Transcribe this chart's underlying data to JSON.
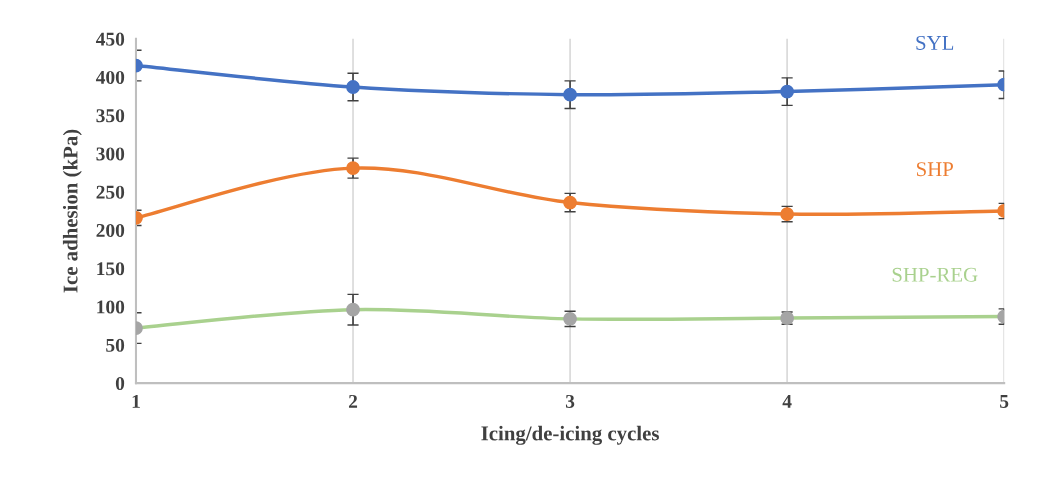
{
  "chart_data": {
    "type": "line",
    "xlabel": "Icing/de-icing cycles",
    "ylabel": "Ice adhesion (kPa)",
    "x": [
      1,
      2,
      3,
      4,
      5
    ],
    "xlim": [
      1,
      5
    ],
    "xticks": [
      1,
      2,
      3,
      4,
      5
    ],
    "ylim": [
      0,
      450
    ],
    "yticks": [
      0,
      50,
      100,
      150,
      200,
      250,
      300,
      350,
      400,
      450
    ],
    "grid": "x",
    "legend": false,
    "marker": "circle",
    "line_style": "solid",
    "series": [
      {
        "name": "SYL",
        "color": "#4472c4",
        "values": [
          415,
          387,
          377,
          381,
          390
        ],
        "errors": [
          20,
          18,
          18,
          18,
          18
        ]
      },
      {
        "name": "SHP",
        "color": "#ed7d31",
        "values": [
          216,
          281,
          236,
          221,
          225
        ],
        "errors": [
          10,
          13,
          12,
          10,
          10
        ]
      },
      {
        "name": "SHP-REG",
        "color": "#a9d18e",
        "colors": [
          "#a5a5a5",
          "#a5a5a5",
          "#a5a5a5",
          "#a5a5a5",
          "#a5a5a5"
        ],
        "values": [
          72,
          96,
          84,
          85,
          87
        ],
        "errors": [
          20,
          20,
          10,
          8,
          10
        ]
      }
    ]
  }
}
